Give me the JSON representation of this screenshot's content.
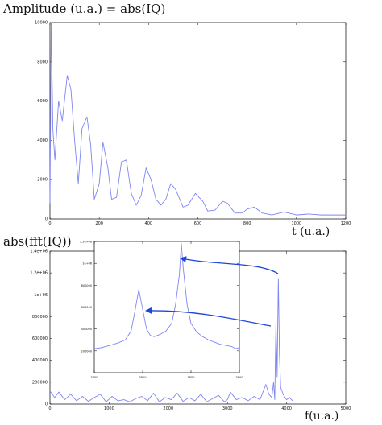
{
  "figure": {
    "top_title": "Amplitude (u.a.) = abs(IQ)",
    "top_xlabel": "t (u.a.)",
    "bottom_title": "abs(fft(IQ))",
    "bottom_xlabel": "f(u.a.)",
    "series_color": "#7f86f0",
    "arrow_color": "#1f45d8"
  },
  "chart_data": [
    {
      "type": "line",
      "title": "Amplitude (u.a.) = abs(IQ)",
      "xlabel": "t (u.a.)",
      "ylabel": "",
      "xlim": [
        0,
        1200
      ],
      "ylim": [
        0,
        10000
      ],
      "xticks": [
        "0",
        "200",
        "400",
        "600",
        "800",
        "1000",
        "1200"
      ],
      "yticks": [
        "0",
        "2000",
        "4000",
        "6000",
        "8000",
        "10000"
      ],
      "grid": false,
      "series": [
        {
          "x": [
            0,
            5,
            12,
            20,
            35,
            50,
            70,
            85,
            100,
            115,
            130,
            150,
            165,
            180,
            200,
            215,
            235,
            250,
            270,
            290,
            310,
            330,
            350,
            370,
            390,
            410,
            430,
            450,
            470,
            490,
            510,
            540,
            560,
            590,
            620,
            640,
            670,
            700,
            720,
            750,
            780,
            800,
            830,
            860,
            900,
            950,
            1000,
            1050,
            1100,
            1150,
            1200
          ],
          "y": [
            800,
            10000,
            4500,
            3000,
            6000,
            5000,
            7300,
            6600,
            4000,
            1800,
            4600,
            5200,
            3800,
            1000,
            1800,
            3900,
            2600,
            1000,
            1100,
            2900,
            3000,
            1300,
            700,
            1200,
            2600,
            2000,
            1000,
            700,
            1000,
            1800,
            1500,
            600,
            700,
            1300,
            900,
            400,
            450,
            900,
            800,
            300,
            300,
            500,
            600,
            300,
            200,
            350,
            200,
            250,
            200,
            200,
            200
          ]
        }
      ]
    },
    {
      "type": "line",
      "title": "abs(fft(IQ))",
      "xlabel": "f(u.a.)",
      "ylabel": "",
      "xlim": [
        0,
        5000
      ],
      "ylim": [
        0,
        1400000
      ],
      "xticks": [
        "0",
        "1000",
        "2000",
        "3000",
        "4000",
        "5000"
      ],
      "yticks": [
        "0",
        "200000",
        "400000",
        "600000",
        "800000",
        "1e+06",
        "1.2e+06",
        "1.4e+06"
      ],
      "grid": false,
      "series": [
        {
          "x": [
            0,
            80,
            150,
            250,
            350,
            450,
            550,
            650,
            750,
            850,
            950,
            1050,
            1150,
            1250,
            1350,
            1450,
            1550,
            1650,
            1750,
            1850,
            1950,
            2050,
            2150,
            2250,
            2350,
            2450,
            2550,
            2650,
            2750,
            2850,
            2950,
            3000,
            3050,
            3150,
            3250,
            3350,
            3450,
            3550,
            3650,
            3700,
            3750,
            3780,
            3800,
            3820,
            3840,
            3860,
            3880,
            3900,
            3950,
            4000,
            4050,
            4100
          ],
          "y": [
            120000,
            60000,
            110000,
            40000,
            90000,
            30000,
            70000,
            25000,
            60000,
            90000,
            20000,
            70000,
            30000,
            40000,
            20000,
            50000,
            70000,
            30000,
            100000,
            20000,
            60000,
            40000,
            100000,
            25000,
            60000,
            30000,
            90000,
            20000,
            50000,
            80000,
            20000,
            40000,
            110000,
            40000,
            60000,
            30000,
            70000,
            40000,
            180000,
            90000,
            60000,
            200000,
            40000,
            750000,
            250000,
            1150000,
            450000,
            150000,
            80000,
            40000,
            60000,
            30000
          ]
        }
      ]
    },
    {
      "type": "line",
      "title": "",
      "xlabel": "",
      "ylabel": "",
      "xlim": [
        3750,
        3900
      ],
      "ylim": [
        0,
        1200000
      ],
      "xticks": [
        "3750",
        "3800",
        "3850",
        "3900"
      ],
      "yticks": [
        "200000",
        "400000",
        "600000",
        "800000",
        "1e+06",
        "1.2e+06"
      ],
      "grid": false,
      "series": [
        {
          "x": [
            3750,
            3758,
            3766,
            3774,
            3782,
            3788,
            3792,
            3796,
            3800,
            3804,
            3808,
            3812,
            3818,
            3824,
            3830,
            3834,
            3838,
            3840,
            3842,
            3846,
            3850,
            3856,
            3862,
            3868,
            3874,
            3880,
            3886,
            3892,
            3896,
            3900
          ],
          "y": [
            220000,
            230000,
            250000,
            270000,
            300000,
            380000,
            560000,
            760000,
            580000,
            400000,
            340000,
            330000,
            350000,
            380000,
            450000,
            620000,
            900000,
            1180000,
            950000,
            620000,
            450000,
            370000,
            330000,
            300000,
            280000,
            260000,
            250000,
            240000,
            220000,
            230000
          ]
        }
      ]
    }
  ]
}
